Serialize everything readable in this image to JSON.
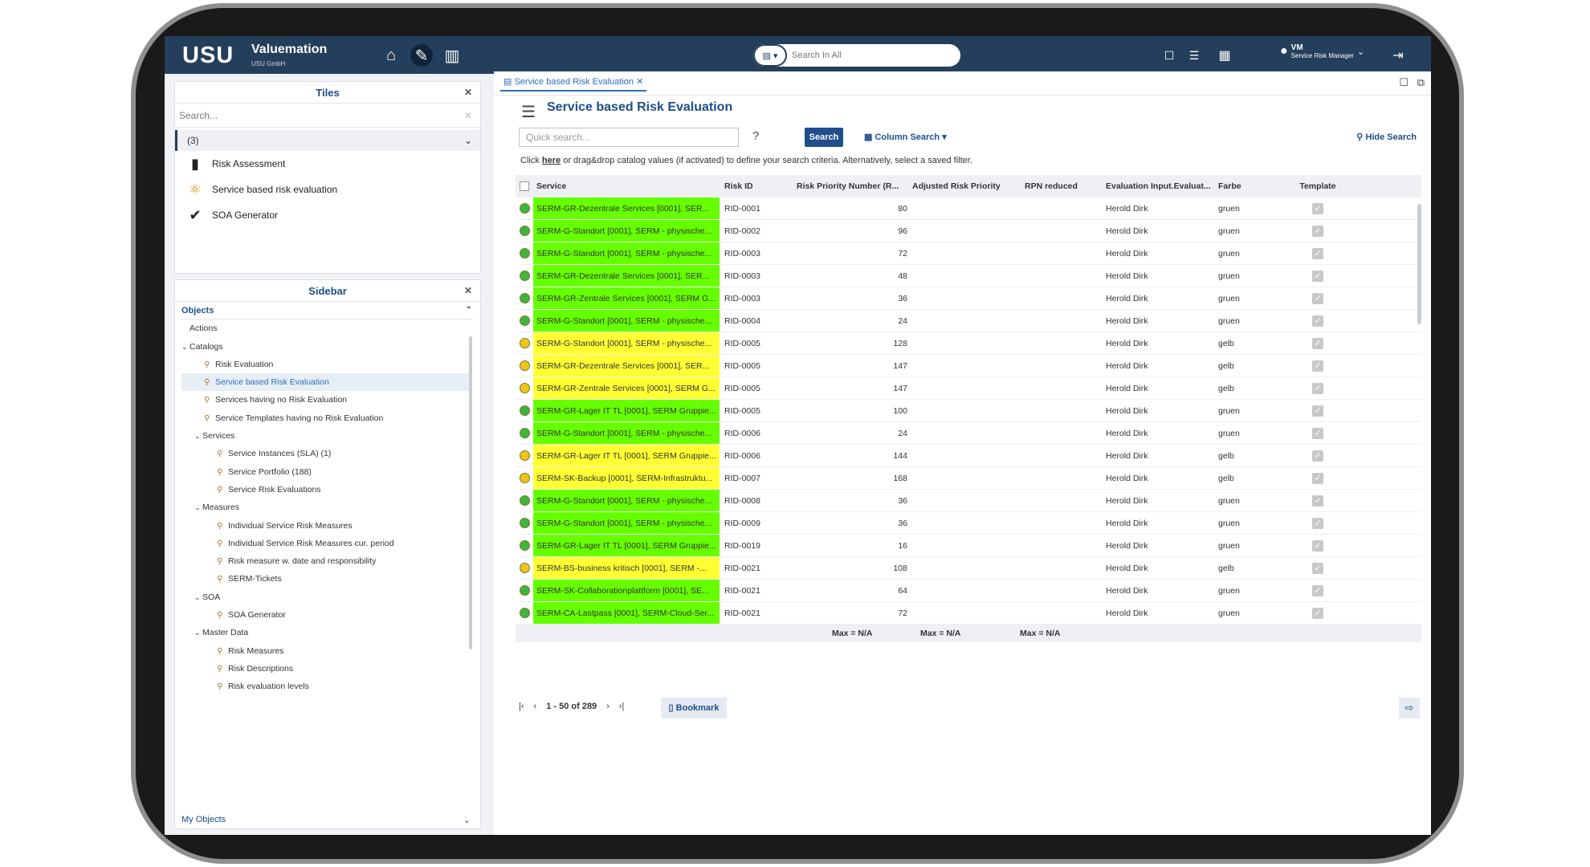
{
  "topbar": {
    "logo": "USU",
    "brand": "Valuemation",
    "brand_sub": "USU GmbH",
    "search_placeholder": "Search In All",
    "user_initials": "VM",
    "user_role": "Service Risk Manager"
  },
  "tiles": {
    "title": "Tiles",
    "search_placeholder": "Search...",
    "count": "(3)",
    "items": [
      {
        "label": "Risk Assessment",
        "icon": "clipboard-icon"
      },
      {
        "label": "Service based risk evaluation",
        "icon": "network-icon"
      },
      {
        "label": "SOA Generator",
        "icon": "checkmark-icon"
      }
    ]
  },
  "sidebar": {
    "title": "Sidebar",
    "objects": "Objects",
    "my_objects": "My Objects",
    "tree": [
      {
        "label": "Actions",
        "level": 0
      },
      {
        "label": "Catalogs",
        "level": 0,
        "caret": "⌄"
      },
      {
        "label": "Risk Evaluation",
        "level": 1
      },
      {
        "label": "Service based Risk Evaluation",
        "level": 1,
        "selected": true
      },
      {
        "label": "Services having no Risk Evaluation",
        "level": 1
      },
      {
        "label": "Service Templates having no Risk Evaluation",
        "level": 1
      },
      {
        "label": "Services",
        "level": 1,
        "caret": "⌄"
      },
      {
        "label": "Service Instances (SLA) (1)",
        "level": 2
      },
      {
        "label": "Service Portfolio (188)",
        "level": 2
      },
      {
        "label": "Service Risk Evaluations",
        "level": 2
      },
      {
        "label": "Measures",
        "level": 1,
        "caret": "⌄"
      },
      {
        "label": "Individual Service Risk Measures",
        "level": 2
      },
      {
        "label": "Individual Service Risk Measures cur. period",
        "level": 2
      },
      {
        "label": "Risk measure w. date and responsibility",
        "level": 2
      },
      {
        "label": "SERM-Tickets",
        "level": 2
      },
      {
        "label": "SOA",
        "level": 1,
        "caret": "⌄"
      },
      {
        "label": "SOA Generator",
        "level": 2
      },
      {
        "label": "Master Data",
        "level": 1,
        "caret": "⌄"
      },
      {
        "label": "Risk Measures",
        "level": 2
      },
      {
        "label": "Risk Descriptions",
        "level": 2
      },
      {
        "label": "Risk evaluation levels",
        "level": 2
      }
    ]
  },
  "main": {
    "tab_label": "Service based Risk Evaluation",
    "title": "Service based Risk Evaluation",
    "quick_search_placeholder": "Quick search...",
    "help": "?",
    "search_button": "Search",
    "column_search": "Column Search",
    "hide_search": "Hide Search",
    "hint_prefix": "Click ",
    "hint_link": "here",
    "hint_suffix": " or drag&drop catalog values (if activated) to define your search criteria. Alternatively, select a saved filter.",
    "pager_text": "1 - 50 of 289",
    "bookmark": "Bookmark",
    "footer_max": "Max = N/A"
  },
  "table": {
    "columns": [
      "Service",
      "Risk ID",
      "Risk Priority Number (R...",
      "Adjusted Risk Priority",
      "RPN reduced",
      "Evaluation Input.Evaluat...",
      "Farbe",
      "Template"
    ],
    "colors": {
      "gruen_dot": "#3fb43f",
      "gelb_dot": "#f0c419",
      "gruen_bg": "#66ff00",
      "gelb_bg": "#ffff33"
    },
    "rows": [
      {
        "status": "gruen",
        "service": "SERM-GR-Dezentrale Services [0001], SER...",
        "risk_id": "RID-0001",
        "rpn": "80",
        "evaluator": "Herold Dirk",
        "farbe": "gruen"
      },
      {
        "status": "gruen",
        "service": "SERM-G-Standort [0001], SERM - physische...",
        "risk_id": "RID-0002",
        "rpn": "96",
        "evaluator": "Herold Dirk",
        "farbe": "gruen"
      },
      {
        "status": "gruen",
        "service": "SERM-G-Standort [0001], SERM - physische...",
        "risk_id": "RID-0003",
        "rpn": "72",
        "evaluator": "Herold Dirk",
        "farbe": "gruen"
      },
      {
        "status": "gruen",
        "service": "SERM-GR-Dezentrale Services [0001], SER...",
        "risk_id": "RID-0003",
        "rpn": "48",
        "evaluator": "Herold Dirk",
        "farbe": "gruen"
      },
      {
        "status": "gruen",
        "service": "SERM-GR-Zentrale Services [0001], SERM G...",
        "risk_id": "RID-0003",
        "rpn": "36",
        "evaluator": "Herold Dirk",
        "farbe": "gruen"
      },
      {
        "status": "gruen",
        "service": "SERM-G-Standort [0001], SERM - physische...",
        "risk_id": "RID-0004",
        "rpn": "24",
        "evaluator": "Herold Dirk",
        "farbe": "gruen"
      },
      {
        "status": "gelb",
        "service": "SERM-G-Standort [0001], SERM - physische...",
        "risk_id": "RID-0005",
        "rpn": "128",
        "evaluator": "Herold Dirk",
        "farbe": "gelb"
      },
      {
        "status": "gelb",
        "service": "SERM-GR-Dezentrale Services [0001], SER...",
        "risk_id": "RID-0005",
        "rpn": "147",
        "evaluator": "Herold Dirk",
        "farbe": "gelb"
      },
      {
        "status": "gelb",
        "service": "SERM-GR-Zentrale Services [0001], SERM G...",
        "risk_id": "RID-0005",
        "rpn": "147",
        "evaluator": "Herold Dirk",
        "farbe": "gelb"
      },
      {
        "status": "gruen",
        "service": "SERM-GR-Lager IT TL [0001], SERM Gruppie...",
        "risk_id": "RID-0005",
        "rpn": "100",
        "evaluator": "Herold Dirk",
        "farbe": "gruen"
      },
      {
        "status": "gruen",
        "service": "SERM-G-Standort [0001], SERM - physische...",
        "risk_id": "RID-0006",
        "rpn": "24",
        "evaluator": "Herold Dirk",
        "farbe": "gruen"
      },
      {
        "status": "gelb",
        "service": "SERM-GR-Lager IT TL [0001], SERM Gruppie...",
        "risk_id": "RID-0006",
        "rpn": "144",
        "evaluator": "Herold Dirk",
        "farbe": "gelb"
      },
      {
        "status": "gelb",
        "service": "SERM-SK-Backup [0001], SERM-Infrastruktu...",
        "risk_id": "RID-0007",
        "rpn": "168",
        "evaluator": "Herold Dirk",
        "farbe": "gelb"
      },
      {
        "status": "gruen",
        "service": "SERM-G-Standort [0001], SERM - physische...",
        "risk_id": "RID-0008",
        "rpn": "36",
        "evaluator": "Herold Dirk",
        "farbe": "gruen"
      },
      {
        "status": "gruen",
        "service": "SERM-G-Standort [0001], SERM - physische...",
        "risk_id": "RID-0009",
        "rpn": "36",
        "evaluator": "Herold Dirk",
        "farbe": "gruen"
      },
      {
        "status": "gruen",
        "service": "SERM-GR-Lager IT TL [0001], SERM Gruppie...",
        "risk_id": "RID-0019",
        "rpn": "16",
        "evaluator": "Herold Dirk",
        "farbe": "gruen"
      },
      {
        "status": "gelb",
        "service": "SERM-BS-business kritisch [0001], SERM -...",
        "risk_id": "RID-0021",
        "rpn": "108",
        "evaluator": "Herold Dirk",
        "farbe": "gelb"
      },
      {
        "status": "gruen",
        "service": "SERM-SK-Collaborationplattform [0001], SE...",
        "risk_id": "RID-0021",
        "rpn": "64",
        "evaluator": "Herold Dirk",
        "farbe": "gruen"
      },
      {
        "status": "gruen",
        "service": "SERM-CA-Lastpass [0001], SERM-Cloud-Ser...",
        "risk_id": "RID-0021",
        "rpn": "72",
        "evaluator": "Herold Dirk",
        "farbe": "gruen"
      }
    ]
  }
}
